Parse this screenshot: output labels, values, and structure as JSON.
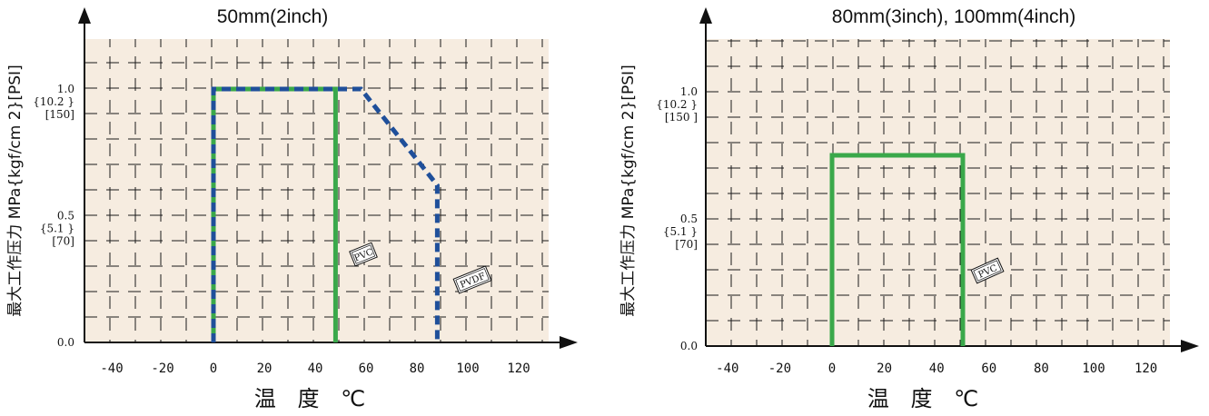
{
  "colors": {
    "plot_bg": "#f6ece0",
    "pvc": "#3aa84a",
    "pvdf": "#1f4f9a",
    "grid": "#1a1a1a",
    "axis": "#111111"
  },
  "chart_data": [
    {
      "type": "line",
      "title": "50mm(2inch)",
      "xlabel": "温 度 ℃",
      "ylabel": "最大工作压力 MPa{kgf/cm 2}[PSI]",
      "xticks": [
        "-40",
        "-20",
        "0",
        "20",
        "40",
        "60",
        "80",
        "100",
        "120"
      ],
      "yticks": [
        {
          "value": 1.0,
          "lines": [
            "1.0",
            "{10.2 }",
            "[150]"
          ]
        },
        {
          "value": 0.5,
          "lines": [
            "0.5",
            "{5.1 }",
            "[70]"
          ]
        },
        {
          "value": 0.0,
          "lines": [
            "0.0"
          ]
        }
      ],
      "xlim": [
        -45,
        130
      ],
      "ylim": [
        0,
        1.0
      ],
      "grid": true,
      "series": [
        {
          "name": "PVC",
          "style": "solid",
          "color": "#3aa84a",
          "x": [
            0,
            0,
            48,
            48
          ],
          "y": [
            0,
            1.0,
            1.0,
            0
          ]
        },
        {
          "name": "PVDF",
          "style": "dashed",
          "color": "#1f4f9a",
          "x": [
            0,
            0,
            58,
            88,
            88
          ],
          "y": [
            0,
            1.0,
            1.0,
            0.62,
            0
          ]
        }
      ]
    },
    {
      "type": "line",
      "title": "80mm(3inch), 100mm(4inch)",
      "xlabel": "温 度 ℃",
      "ylabel": "最大工作压力 MPa{kgf/cm 2}[PSI]",
      "xticks": [
        "-40",
        "-20",
        "0",
        "20",
        "40",
        "60",
        "80",
        "100",
        "120"
      ],
      "yticks": [
        {
          "value": 1.0,
          "lines": [
            "1.0",
            "{10.2 }",
            "[150 ]"
          ]
        },
        {
          "value": 0.5,
          "lines": [
            "0.5",
            "{5.1 }",
            "[70]"
          ]
        },
        {
          "value": 0.0,
          "lines": [
            "0.0"
          ]
        }
      ],
      "xlim": [
        -45,
        130
      ],
      "ylim": [
        0,
        1.0
      ],
      "grid": true,
      "series": [
        {
          "name": "PVC",
          "style": "solid",
          "color": "#3aa84a",
          "x": [
            0,
            0,
            50,
            50
          ],
          "y": [
            0,
            0.75,
            0.75,
            0
          ]
        }
      ]
    }
  ]
}
